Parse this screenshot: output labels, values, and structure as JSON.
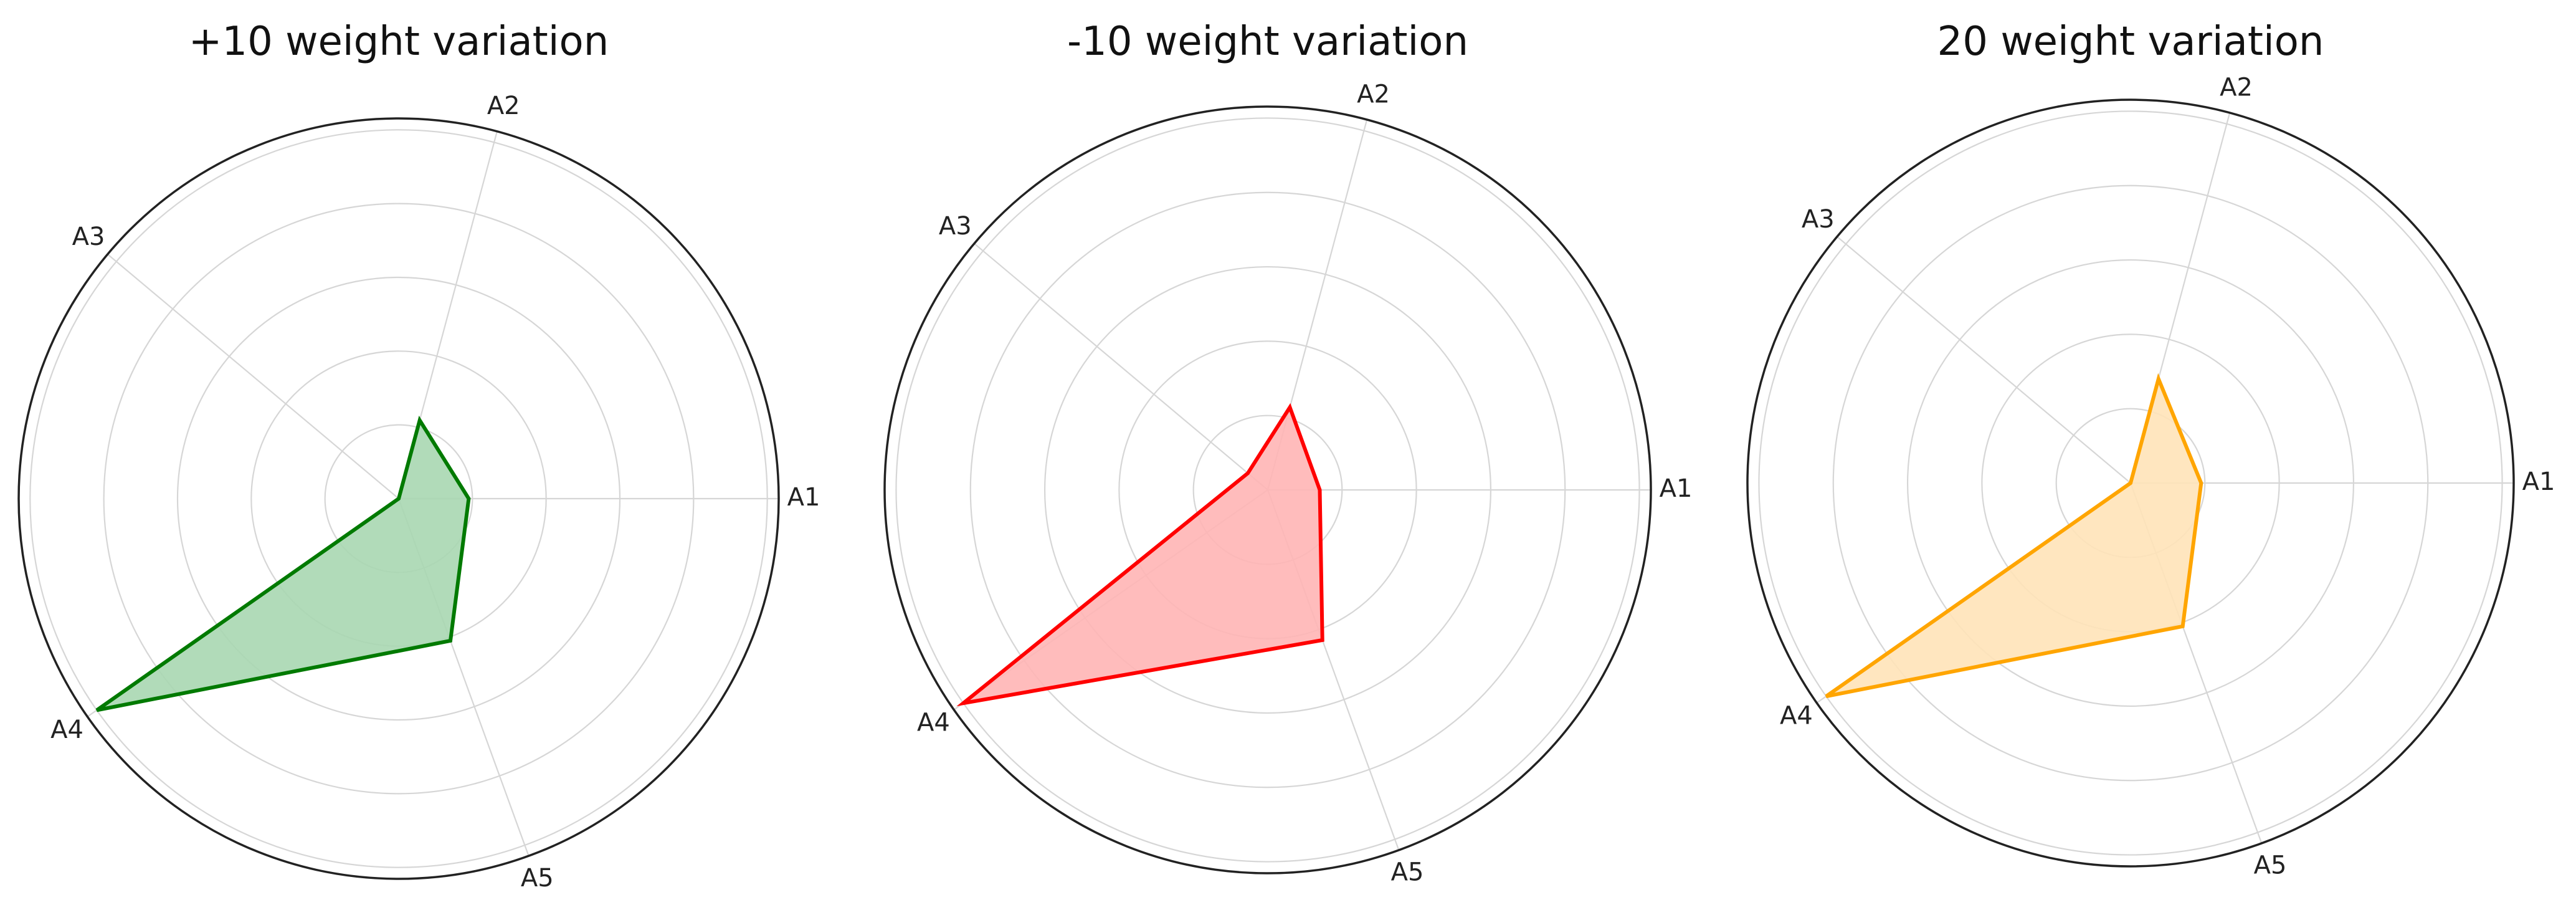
{
  "chart_data": [
    {
      "type": "radar",
      "title": "+10 weight variation",
      "axes": [
        "A1",
        "A2",
        "A3",
        "A4",
        "A5"
      ],
      "axis_angles_deg": [
        0,
        75,
        140,
        215,
        290
      ],
      "radial_range": [
        0,
        1
      ],
      "rings": 5,
      "grid": true,
      "series": [
        {
          "values": [
            0.19,
            0.22,
            0.0,
            1.0,
            0.41
          ],
          "color": "#007a00",
          "fill": "#a9d7b1"
        }
      ]
    },
    {
      "type": "radar",
      "title": "-10 weight variation",
      "axes": [
        "A1",
        "A2",
        "A3",
        "A4",
        "A5"
      ],
      "axis_angles_deg": [
        0,
        75,
        140,
        215,
        290
      ],
      "radial_range": [
        0,
        1
      ],
      "rings": 5,
      "grid": true,
      "series": [
        {
          "values": [
            0.14,
            0.23,
            0.07,
            1.0,
            0.43
          ],
          "color": "#ff0000",
          "fill": "#ffb5b5"
        }
      ]
    },
    {
      "type": "radar",
      "title": "20 weight variation",
      "axes": [
        "A1",
        "A2",
        "A3",
        "A4",
        "A5"
      ],
      "axis_angles_deg": [
        0,
        75,
        140,
        215,
        290
      ],
      "radial_range": [
        0,
        1
      ],
      "rings": 5,
      "grid": true,
      "series": [
        {
          "values": [
            0.19,
            0.29,
            0.0,
            1.0,
            0.41
          ],
          "color": "#ffa500",
          "fill": "#ffe3b8"
        }
      ]
    }
  ]
}
